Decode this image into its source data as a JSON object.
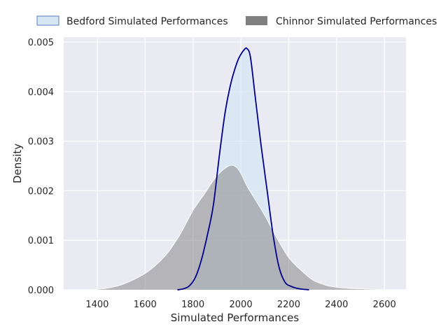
{
  "chart_data": {
    "type": "area",
    "title": "",
    "xlabel": "Simulated Performances",
    "ylabel": "Density",
    "xlim": [
      1260,
      2690
    ],
    "ylim": [
      0,
      0.0051
    ],
    "xticks": [
      1400,
      1600,
      1800,
      2000,
      2200,
      2400,
      2600
    ],
    "yticks": [
      0.0,
      0.001,
      0.002,
      0.003,
      0.004,
      0.005
    ],
    "ytick_labels": [
      "0.000",
      "0.001",
      "0.002",
      "0.003",
      "0.004",
      "0.005"
    ],
    "grid": true,
    "legend_position": "top",
    "series": [
      {
        "name": "Bedford Simulated Performances",
        "fill": "#d6e6f3",
        "line": "#00008b",
        "x": [
          1735,
          1760,
          1785,
          1810,
          1835,
          1860,
          1885,
          1910,
          1935,
          1960,
          1985,
          2000,
          2015,
          2025,
          2040,
          2060,
          2085,
          2110,
          2135,
          2160,
          2185,
          2210,
          2235,
          2260,
          2285
        ],
        "y": [
          0.0,
          2e-05,
          8e-05,
          0.00025,
          0.0006,
          0.0011,
          0.0017,
          0.0027,
          0.0036,
          0.0042,
          0.0046,
          0.00475,
          0.00485,
          0.00487,
          0.0047,
          0.0039,
          0.0029,
          0.002,
          0.0011,
          0.00045,
          0.00015,
          7e-05,
          3e-05,
          1e-05,
          0.0
        ]
      },
      {
        "name": "Chinnor Simulated Performances",
        "fill": "#808080",
        "line": "#ffffff",
        "x": [
          1320,
          1400,
          1450,
          1500,
          1550,
          1600,
          1650,
          1700,
          1750,
          1800,
          1850,
          1900,
          1950,
          1980,
          2000,
          2025,
          2050,
          2100,
          2150,
          2200,
          2250,
          2300,
          2350,
          2400,
          2450,
          2500,
          2550,
          2600,
          2630
        ],
        "y": [
          0.0,
          1e-05,
          4e-05,
          0.0001,
          0.0002,
          0.00033,
          0.00052,
          0.00078,
          0.00115,
          0.0016,
          0.00195,
          0.0023,
          0.0025,
          0.00248,
          0.00235,
          0.0021,
          0.0019,
          0.0015,
          0.00105,
          0.00065,
          0.0004,
          0.0002,
          0.0001,
          5e-05,
          3e-05,
          2e-05,
          1e-05,
          0.0,
          0.0
        ]
      }
    ]
  }
}
